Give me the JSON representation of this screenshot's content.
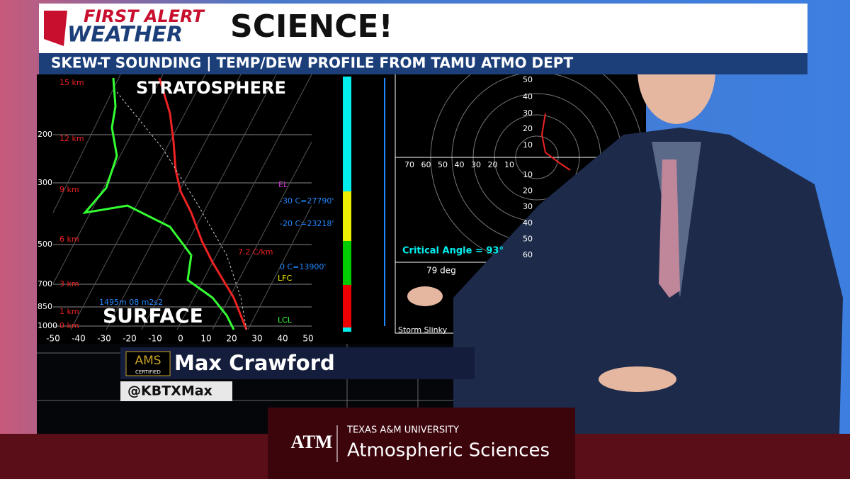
{
  "header": {
    "logo_top": "FIRST ALERT",
    "logo_bottom": "WEATHER",
    "title": "SCIENCE!",
    "subtitle": "SKEW-T SOUNDING | TEMP/DEW PROFILE FROM TAMU ATMO DEPT"
  },
  "skew_t": {
    "label_top": "STRATOSPHERE",
    "label_bottom": "SURFACE",
    "heights": [
      "15 km",
      "12 km",
      "9 km",
      "6 km",
      "3 km",
      "1 km",
      "0 km"
    ],
    "pressures": [
      "200",
      "300",
      "500",
      "700",
      "850",
      "1000"
    ],
    "temperatures": [
      "-50",
      "-40",
      "-30",
      "-20",
      "-10",
      "0",
      "10",
      "20",
      "30",
      "40",
      "50"
    ],
    "annotations": [
      "EL",
      "-30 C=27790'",
      "-20 C=23218'",
      "7.2 C/km",
      "0 C=13900'",
      "LFC",
      "LCL",
      "1495m 08 m2s2"
    ]
  },
  "hodograph": {
    "upper_rings": [
      "50",
      "40",
      "30",
      "20",
      "10"
    ],
    "lower_rings": [
      "10",
      "20",
      "30",
      "40",
      "50",
      "60"
    ],
    "horizontal_rings": [
      "70",
      "60",
      "50",
      "40",
      "30",
      "20",
      "10"
    ],
    "critical_angle": "Critical Angle = 93°",
    "slinky_angle": "79 deg",
    "slinky_title": "Storm Slinky"
  },
  "lower_third": {
    "badge_top": "AMS",
    "badge_bottom": "CERTIFIED",
    "name": "Max Crawford",
    "handle": "@KBTXMax"
  },
  "footer": {
    "logo": "ATM",
    "university": "TEXAS A&M UNIVERSITY",
    "department": "Atmospheric Sciences"
  }
}
